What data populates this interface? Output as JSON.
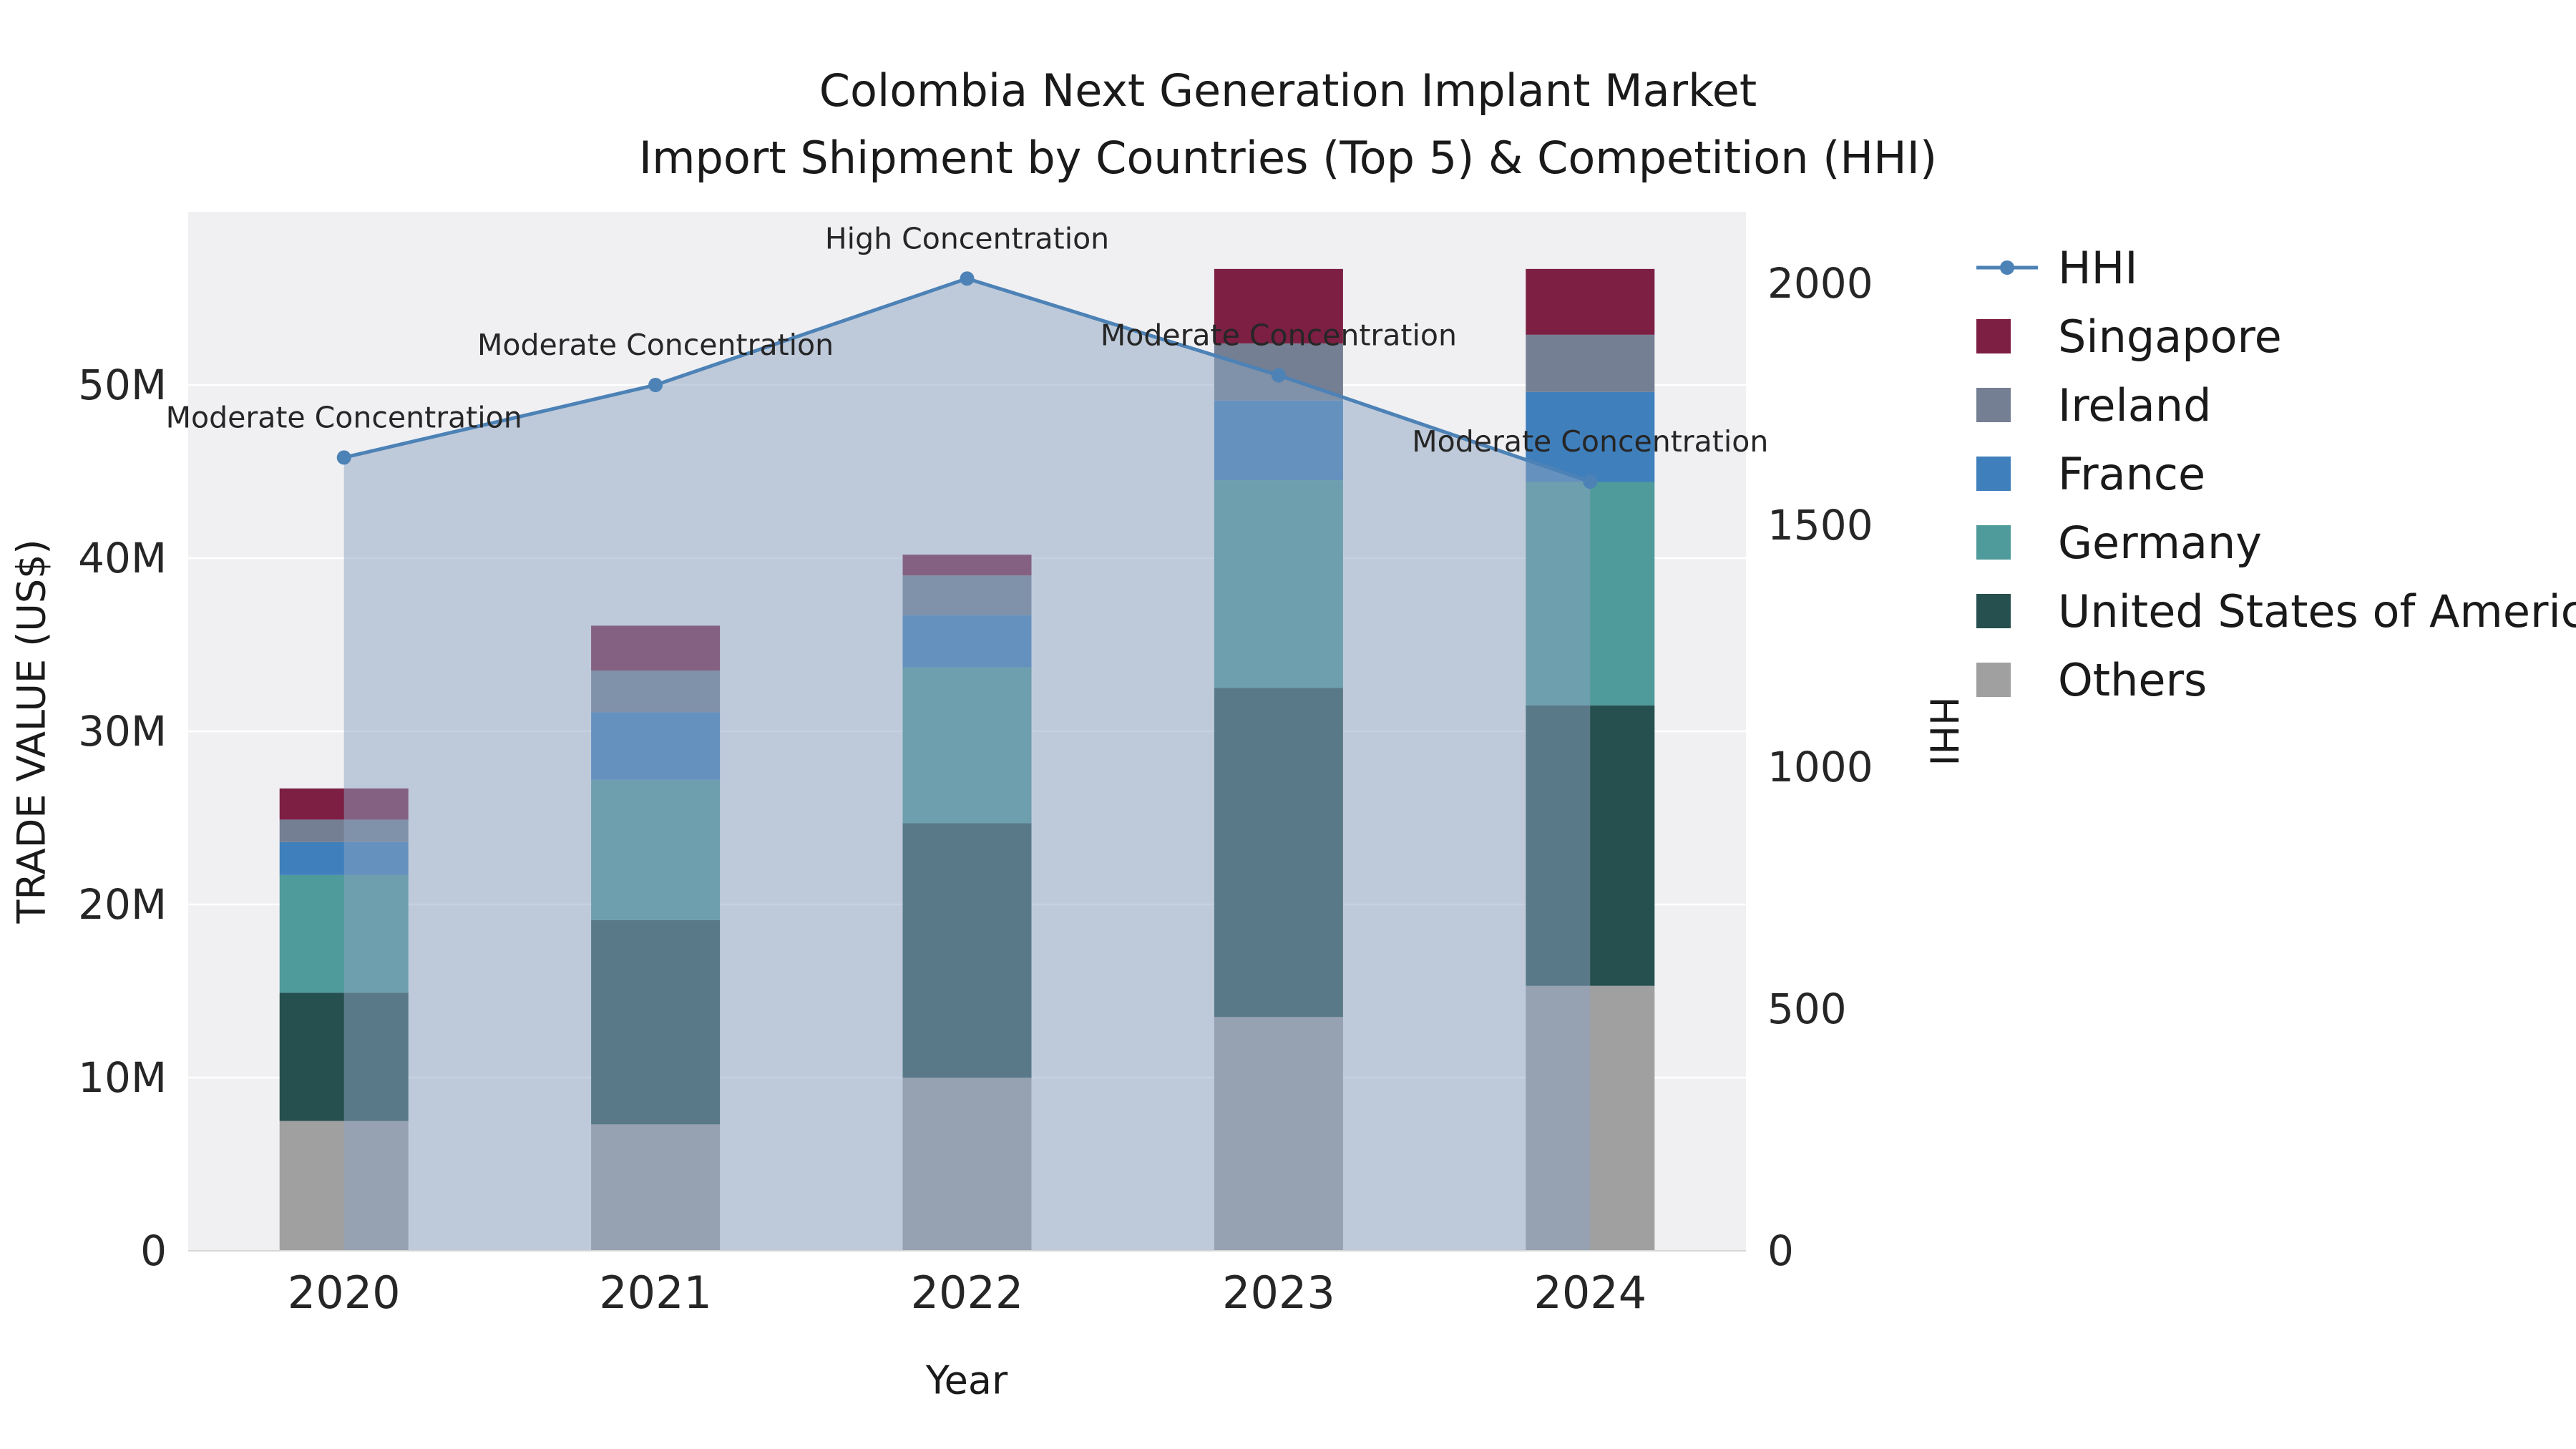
{
  "chart_data": {
    "type": "bar",
    "subtype": "stacked-bars-with-line-overlay-and-area-fill",
    "title_line1": "Colombia Next Generation Implant Market",
    "title_line2": "Import Shipment by Countries (Top 5) & Competition (HHI)",
    "xlabel": "Year",
    "ylabel_left": "TRADE VALUE (US$)",
    "ylabel_right": "HHI",
    "bar_value_unit": "millions of US$ (estimated from gridlines)",
    "categories": [
      "2020",
      "2021",
      "2022",
      "2023",
      "2024"
    ],
    "bar_series": [
      {
        "name": "Others",
        "color": "#a0a0a0",
        "values": [
          7.5,
          7.3,
          10.0,
          13.5,
          15.3
        ]
      },
      {
        "name": "United States of America",
        "color": "#264f4f",
        "values": [
          7.4,
          11.8,
          14.7,
          19.0,
          16.2
        ]
      },
      {
        "name": "Germany",
        "color": "#4f9a9b",
        "values": [
          6.8,
          8.1,
          9.0,
          12.0,
          12.9
        ]
      },
      {
        "name": "France",
        "color": "#3f7fbc",
        "values": [
          1.9,
          3.9,
          3.0,
          4.6,
          5.2
        ]
      },
      {
        "name": "Ireland",
        "color": "#747f93",
        "values": [
          1.3,
          2.4,
          2.3,
          3.3,
          3.3
        ]
      },
      {
        "name": "Singapore",
        "color": "#7c1f43",
        "values": [
          1.8,
          2.6,
          1.2,
          4.3,
          3.8
        ]
      }
    ],
    "bar_totals": [
      26.7,
      36.1,
      40.2,
      56.7,
      56.7
    ],
    "hhi_line": {
      "name": "HHI",
      "color": "#4d82b6",
      "area_fill_color": "#8ba3c1",
      "area_fill_opacity": 0.5,
      "values": [
        1640,
        1790,
        2010,
        1810,
        1590
      ]
    },
    "annotations": [
      {
        "year": "2020",
        "text": "Moderate Concentration"
      },
      {
        "year": "2021",
        "text": "Moderate Concentration"
      },
      {
        "year": "2022",
        "text": "High Concentration"
      },
      {
        "year": "2023",
        "text": "Moderate Concentration"
      },
      {
        "year": "2024",
        "text": "Moderate Concentration"
      }
    ],
    "axis_left": {
      "max": 60,
      "ticks": [
        {
          "label": "0",
          "value": 0
        },
        {
          "label": "10M",
          "value": 10
        },
        {
          "label": "20M",
          "value": 20
        },
        {
          "label": "30M",
          "value": 30
        },
        {
          "label": "40M",
          "value": 40
        },
        {
          "label": "50M",
          "value": 50
        }
      ]
    },
    "axis_right": {
      "max": 2148,
      "ticks": [
        {
          "label": "0",
          "value": 0
        },
        {
          "label": "500",
          "value": 500
        },
        {
          "label": "1000",
          "value": 1000
        },
        {
          "label": "1500",
          "value": 1500
        },
        {
          "label": "2000",
          "value": 2000
        }
      ]
    },
    "legend": {
      "position": "top-right-outside",
      "items": [
        {
          "label": "HHI",
          "color": "#4d82b6",
          "type": "line"
        },
        {
          "label": "Singapore",
          "color": "#7c1f43",
          "type": "swatch"
        },
        {
          "label": "Ireland",
          "color": "#747f93",
          "type": "swatch"
        },
        {
          "label": "France",
          "color": "#3f7fbc",
          "type": "swatch"
        },
        {
          "label": "Germany",
          "color": "#4f9a9b",
          "type": "swatch"
        },
        {
          "label": "United States of America",
          "color": "#264f4f",
          "type": "swatch"
        },
        {
          "label": "Others",
          "color": "#a0a0a0",
          "type": "swatch"
        }
      ]
    },
    "style": {
      "plot_background": "#f0f0f3",
      "gridline_color": "#ffffff",
      "grid": "horizontal-left-axis-ticks"
    }
  }
}
